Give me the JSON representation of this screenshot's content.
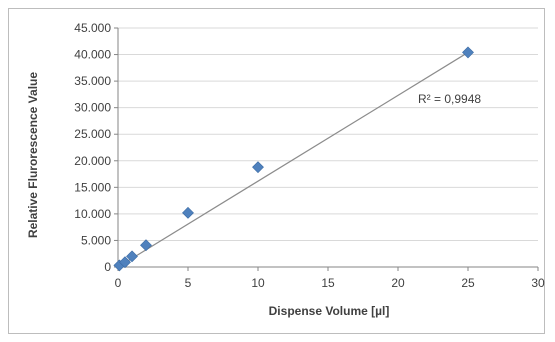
{
  "chart_data": {
    "type": "scatter",
    "title": "",
    "xlabel": "Dispense Volume [µl]",
    "ylabel": "Relative Flurorescence Value",
    "xlim": [
      0,
      30
    ],
    "ylim": [
      0,
      45000
    ],
    "xticks": [
      0,
      5,
      10,
      15,
      20,
      25,
      30
    ],
    "xtick_labels": [
      "0",
      "5",
      "10",
      "15",
      "20",
      "25",
      "30"
    ],
    "yticks": [
      0,
      5000,
      10000,
      15000,
      20000,
      25000,
      30000,
      35000,
      40000,
      45000
    ],
    "ytick_labels": [
      "0",
      "5.000",
      "10.000",
      "15.000",
      "20.000",
      "25.000",
      "30.000",
      "35.000",
      "40.000",
      "45.000"
    ],
    "grid": {
      "horizontal": true,
      "vertical": false
    },
    "legend": "none",
    "series": [
      {
        "x": [
          0.1,
          0.5,
          1,
          2,
          5,
          10,
          25
        ],
        "y": [
          300,
          900,
          2000,
          4100,
          10200,
          18800,
          40400
        ],
        "marker": "diamond",
        "color": "#4f81bd"
      }
    ],
    "trendline": {
      "type": "linear",
      "from": [
        0,
        0
      ],
      "to": [
        25,
        40400
      ],
      "color": "#8c8c8c",
      "annotation": "R² = 0,9948"
    }
  }
}
